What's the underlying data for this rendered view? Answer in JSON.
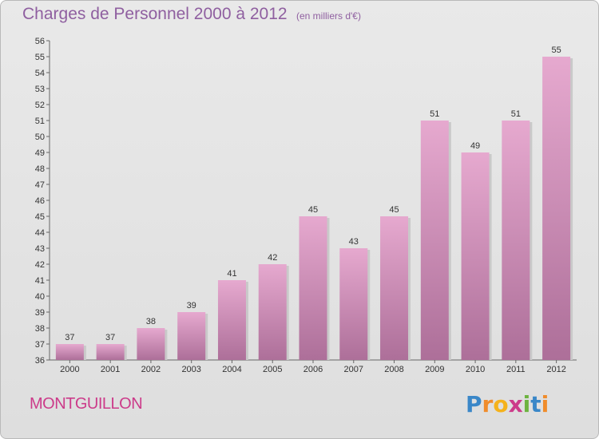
{
  "header": {
    "title": "Charges de Personnel 2000 à 2012",
    "subtitle": "(en milliers d'€)"
  },
  "footer": {
    "town": "MONTGUILLON",
    "logo_text": "Proxiti"
  },
  "colors": {
    "bar_top": "#e3a6cc",
    "bar_bottom": "#ad6f99",
    "accent": "#8f5fa0"
  },
  "chart_data": {
    "type": "bar",
    "title": "Charges de Personnel 2000 à 2012",
    "subtitle": "(en milliers d'€)",
    "xlabel": "",
    "ylabel": "",
    "categories": [
      "2000",
      "2001",
      "2002",
      "2003",
      "2004",
      "2005",
      "2006",
      "2007",
      "2008",
      "2009",
      "2010",
      "2011",
      "2012"
    ],
    "values": [
      37,
      37,
      38,
      39,
      41,
      42,
      45,
      43,
      45,
      51,
      49,
      51,
      55
    ],
    "ylim": [
      36,
      56
    ],
    "yticks": [
      36,
      37,
      38,
      39,
      40,
      41,
      42,
      43,
      44,
      45,
      46,
      47,
      48,
      49,
      50,
      51,
      52,
      53,
      54,
      55,
      56
    ],
    "grid": false
  }
}
